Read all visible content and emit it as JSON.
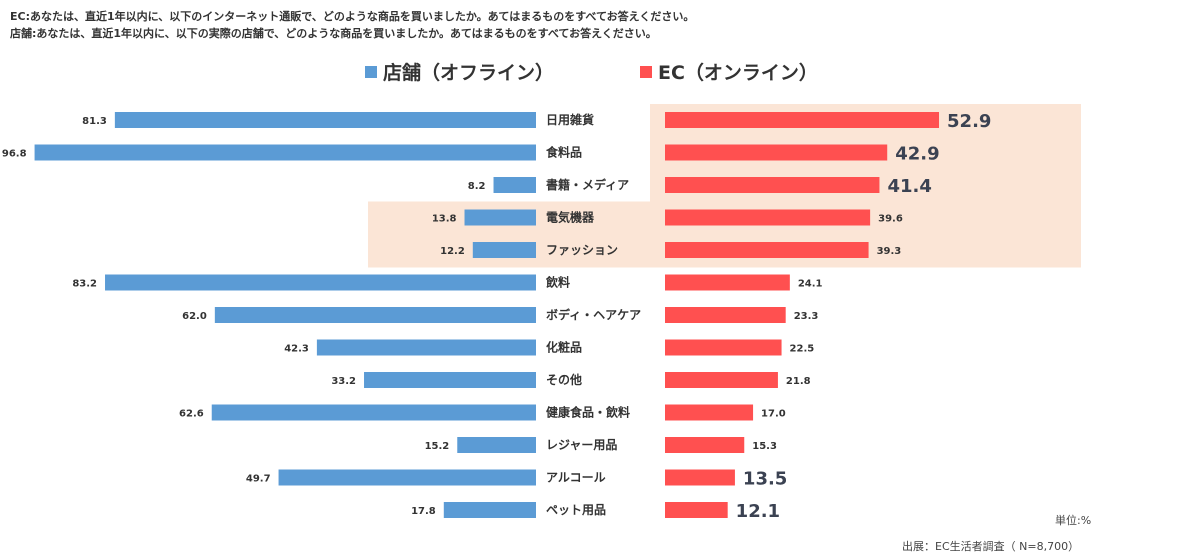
{
  "notes": {
    "ec": "EC:あなたは、直近1年以内に、以下のインターネット通販で、どのような商品を買いましたか。あてはまるものをすべてお答えください。",
    "store": "店舗:あなたは、直近1年以内に、以下の実際の店舗で、どのような商品を買いましたか。あてはまるものをすべてお答えください。"
  },
  "unit": "単位:%",
  "source": "出展：EC生活者調査（ N=8,700）",
  "chart_data": {
    "type": "bar",
    "orientation": "horizontal-butterfly",
    "categories": [
      "日用雑貨",
      "食料品",
      "書籍・メディア",
      "電気機器",
      "ファッション",
      "飲料",
      "ボディ・ヘアケア",
      "化粧品",
      "その他",
      "健康食品・飲料",
      "レジャー用品",
      "アルコール",
      "ペット用品"
    ],
    "series": [
      {
        "name": "店舗（オフライン）",
        "color": "#5b9bd5",
        "values": [
          81.3,
          96.8,
          8.2,
          13.8,
          12.2,
          83.2,
          62.0,
          42.3,
          33.2,
          62.6,
          15.2,
          49.7,
          17.8
        ]
      },
      {
        "name": "EC（オンライン）",
        "color": "#ff5050",
        "values": [
          52.9,
          42.9,
          41.4,
          39.6,
          39.3,
          24.1,
          23.3,
          22.5,
          21.8,
          17.0,
          15.3,
          13.5,
          12.1
        ]
      }
    ],
    "highlight_color": "#fbe5d6",
    "emphasized_values": [
      52.9,
      42.9,
      41.4,
      13.5,
      12.1
    ],
    "xlim": [
      0,
      100
    ]
  }
}
